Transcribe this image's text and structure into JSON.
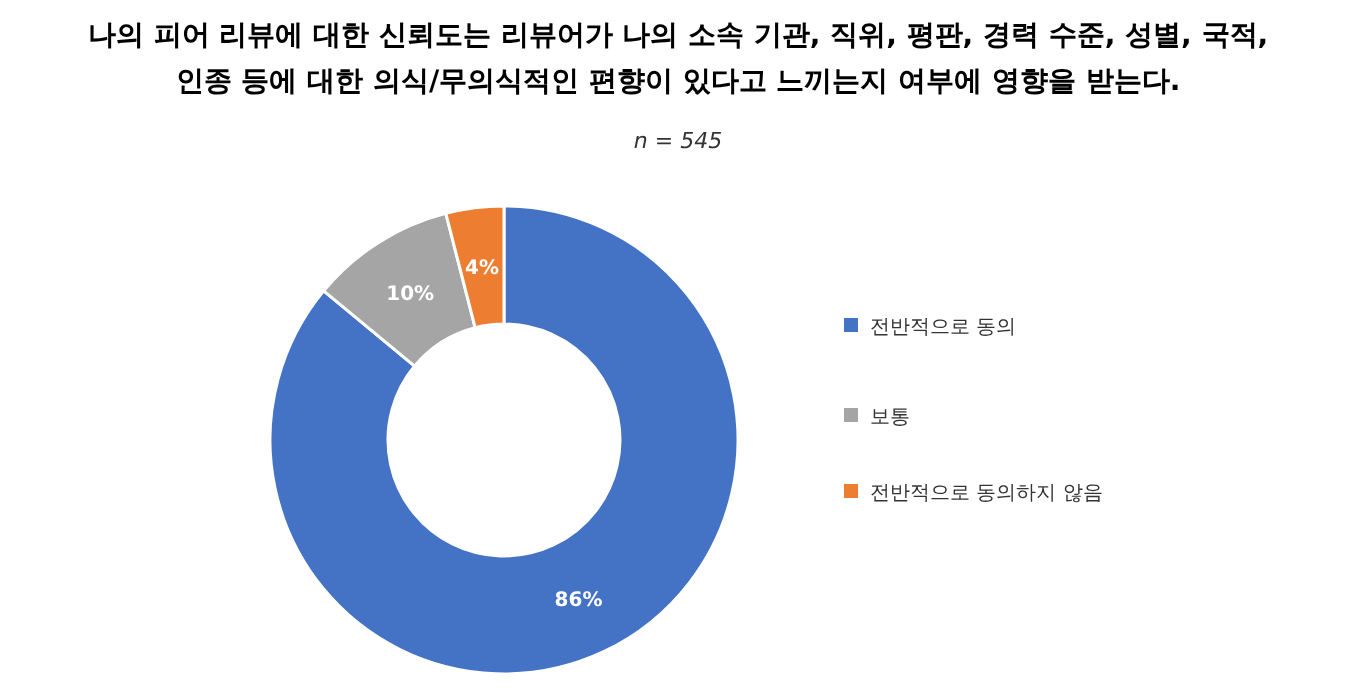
{
  "chart_data": {
    "type": "donut",
    "title": "나의 피어 리뷰에 대한 신뢰도는 리뷰어가 나의 소속 기관, 직위, 평판, 경력 수준, 성별, 국적, 인종 등에 대한 의식/무의식적인 편향이 있다고 느끼는지 여부에 영향을 받는다.",
    "subtitle": "n = 545",
    "categories": [
      "전반적으로 동의",
      "보통",
      "전반적으로 동의하지 않음"
    ],
    "values": [
      86,
      10,
      4
    ],
    "colors": [
      "#4472c4",
      "#a5a5a5",
      "#ed7d31"
    ],
    "value_labels": [
      "86%",
      "10%",
      "4%"
    ],
    "legend": "right"
  }
}
